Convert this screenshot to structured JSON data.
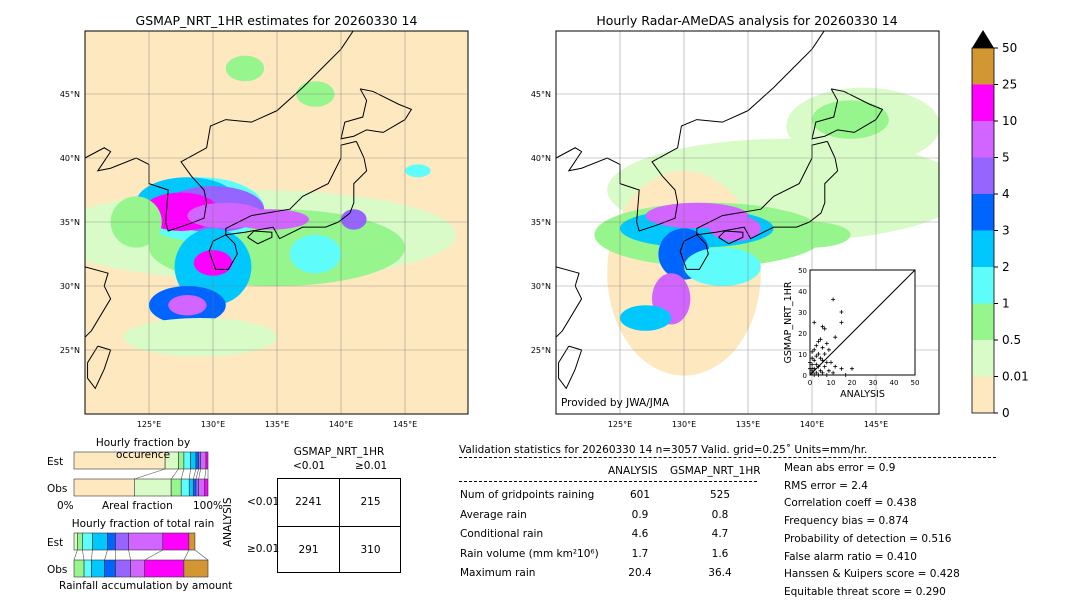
{
  "left_map": {
    "title": "GSMAP_NRT_1HR estimates for 20260330 14",
    "lon_ticks": [
      "125°E",
      "130°E",
      "135°E",
      "140°E",
      "145°E"
    ],
    "lat_ticks": [
      "45°N",
      "40°N",
      "35°N",
      "30°N",
      "25°N"
    ]
  },
  "right_map": {
    "title": "Hourly Radar-AMeDAS analysis for 20260330 14",
    "lon_ticks": [
      "125°E",
      "130°E",
      "135°E",
      "140°E",
      "145°E"
    ],
    "lat_ticks": [
      "45°N",
      "40°N",
      "35°N",
      "30°N",
      "25°N"
    ],
    "credit": "Provided by JWA/JMA"
  },
  "colorbar": {
    "levels": [
      "0",
      "0.01",
      "0.5",
      "1",
      "2",
      "3",
      "4",
      "5",
      "10",
      "25",
      "50"
    ],
    "colors": [
      "#fde8c0",
      "#d9fbc8",
      "#96f58c",
      "#5efdfb",
      "#00c8ff",
      "#0064ff",
      "#9664ff",
      "#d264ff",
      "#ff00ff",
      "#d29632"
    ],
    "extend_color": "#000000"
  },
  "chart_data": [
    {
      "type": "scatter",
      "xlabel": "ANALYSIS",
      "ylabel": "GSMAP_NRT_1HR",
      "xlim": [
        0,
        50
      ],
      "ylim": [
        0,
        50
      ],
      "ticks": [
        "0",
        "10",
        "20",
        "30",
        "40",
        "50"
      ],
      "points": [
        [
          11,
          36
        ],
        [
          15,
          30
        ],
        [
          15,
          25
        ],
        [
          2,
          25
        ],
        [
          6,
          23
        ],
        [
          7,
          22
        ],
        [
          12,
          18
        ],
        [
          5,
          17
        ],
        [
          4,
          16
        ],
        [
          8,
          15
        ],
        [
          3,
          14
        ],
        [
          6,
          13
        ],
        [
          2,
          12
        ],
        [
          9,
          12
        ],
        [
          1,
          11
        ],
        [
          4,
          10
        ],
        [
          7,
          10
        ],
        [
          3,
          9
        ],
        [
          5,
          8
        ],
        [
          1,
          8
        ],
        [
          2,
          7
        ],
        [
          6,
          7
        ],
        [
          8,
          6
        ],
        [
          10,
          6
        ],
        [
          3,
          5
        ],
        [
          1,
          5
        ],
        [
          4,
          4
        ],
        [
          7,
          4
        ],
        [
          12,
          4
        ],
        [
          15,
          3
        ],
        [
          20,
          3
        ],
        [
          2,
          3
        ],
        [
          5,
          2
        ],
        [
          9,
          2
        ],
        [
          1,
          2
        ],
        [
          3,
          1
        ],
        [
          6,
          1
        ],
        [
          11,
          1
        ],
        [
          17,
          0
        ],
        [
          2,
          0
        ],
        [
          4,
          0
        ],
        [
          8,
          0
        ],
        [
          1,
          1
        ],
        [
          0,
          3
        ],
        [
          0,
          6
        ],
        [
          1,
          3
        ]
      ]
    },
    {
      "type": "bar",
      "title": "Hourly fraction by occurence",
      "xlabel": "Areal fraction",
      "tick_left": "0%",
      "tick_right": "100%",
      "categories": [
        "Est",
        "Obs"
      ],
      "series": [
        [
          68,
          10,
          4,
          5,
          4,
          2,
          1.5,
          4,
          1.5
        ],
        [
          45,
          27.5,
          7.5,
          6,
          3,
          2,
          2,
          4.5,
          2.5
        ]
      ]
    },
    {
      "type": "bar",
      "title": "Hourly fraction of total rain",
      "xlabel": "Rainfall accumulation by amount",
      "categories": [
        "Est",
        "Obs"
      ],
      "series": [
        [
          2.5,
          3.75,
          7.5,
          11.25,
          6,
          9.75,
          25.5,
          19.5,
          4.5
        ],
        [
          0,
          7.5,
          5.5,
          9.75,
          8.25,
          11.25,
          10.5,
          29.25,
          18
        ]
      ]
    }
  ],
  "contingency": {
    "title": "GSMAP_NRT_1HR",
    "col_headers": [
      "<0.01",
      "≥0.01"
    ],
    "row_label": "ANALYSIS",
    "row_headers": [
      "<0.01",
      "≥0.01"
    ],
    "cells": [
      [
        "2241",
        "215"
      ],
      [
        "291",
        "310"
      ]
    ]
  },
  "stats": {
    "header": "Validation statistics for 20260330 14  n=3057 Valid. grid=0.25˚ Units=mm/hr.",
    "col_headers": [
      "ANALYSIS",
      "GSMAP_NRT_1HR"
    ],
    "rows": [
      [
        "Num of gridpoints raining",
        "601",
        "525"
      ],
      [
        "Average rain",
        "0.9",
        "0.8"
      ],
      [
        "Conditional rain",
        "4.6",
        "4.7"
      ],
      [
        "Rain volume (mm km²10⁶)",
        "1.7",
        "1.6"
      ],
      [
        "Maximum rain",
        "20.4",
        "36.4"
      ]
    ],
    "scores": [
      "Mean abs error =    0.9",
      "RMS error =    2.4",
      "Correlation coeff =  0.438",
      "Frequency bias =  0.874",
      "Probability of detection =  0.516",
      "False alarm ratio =  0.410",
      "Hanssen & Kuipers score =  0.428",
      "Equitable threat score =  0.290"
    ]
  }
}
